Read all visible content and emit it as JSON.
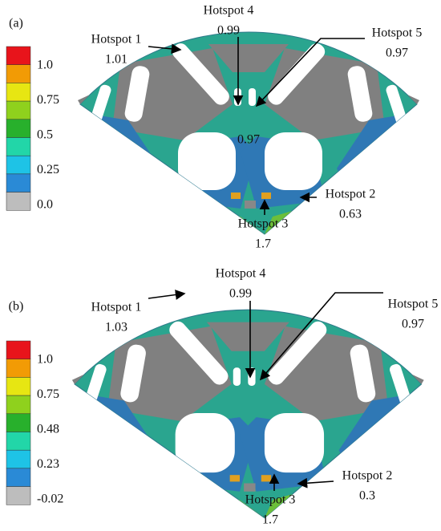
{
  "panels": [
    {
      "label": "(a)",
      "legend_labels": [
        "1.0",
        "0.75",
        "0.5",
        "0.25",
        "0.0"
      ],
      "center_value": "0.97",
      "hotspots": [
        {
          "name": "Hotspot 1",
          "value": "1.01"
        },
        {
          "name": "Hotspot 4",
          "value": "0.99"
        },
        {
          "name": "Hotspot 5",
          "value": "0.97"
        },
        {
          "name": "Hotspot 2",
          "value": "0.63"
        },
        {
          "name": "Hotspot 3",
          "value": "1.7"
        }
      ]
    },
    {
      "label": "(b)",
      "legend_labels": [
        "1.0",
        "0.75",
        "0.48",
        "0.23",
        "-0.02"
      ],
      "hotspots": [
        {
          "name": "Hotspot 1",
          "value": "1.03"
        },
        {
          "name": "Hotspot 4",
          "value": "0.99"
        },
        {
          "name": "Hotspot 5",
          "value": "0.97"
        },
        {
          "name": "Hotspot 2",
          "value": "0.3"
        },
        {
          "name": "Hotspot 3",
          "value": "1.7"
        }
      ]
    }
  ]
}
